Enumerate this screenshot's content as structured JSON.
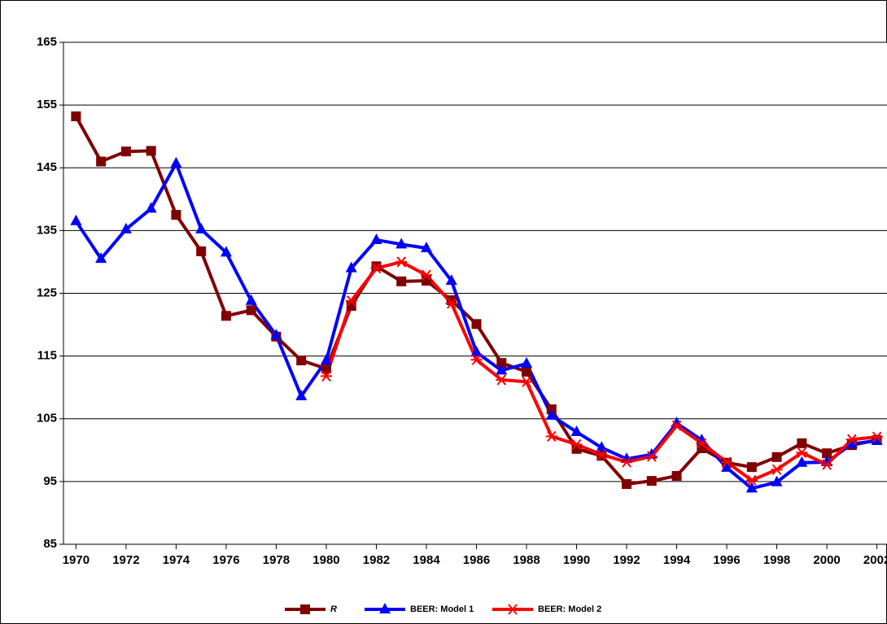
{
  "chart_data": {
    "type": "line",
    "x": [
      1970,
      1971,
      1972,
      1973,
      1974,
      1975,
      1976,
      1977,
      1978,
      1979,
      1980,
      1981,
      1982,
      1983,
      1984,
      1985,
      1986,
      1987,
      1988,
      1989,
      1990,
      1991,
      1992,
      1993,
      1994,
      1995,
      1996,
      1997,
      1998,
      1999,
      2000,
      2001,
      2002
    ],
    "series": [
      {
        "name": "R",
        "color": "#800000",
        "marker": "square",
        "values": [
          153.2,
          146.0,
          147.6,
          147.7,
          137.5,
          131.7,
          121.4,
          122.3,
          118.1,
          114.3,
          113.0,
          123.0,
          129.3,
          126.9,
          127.0,
          123.9,
          120.1,
          113.9,
          112.5,
          106.5,
          100.2,
          99.1,
          94.6,
          95.1,
          95.9,
          100.3,
          98.0,
          97.3,
          98.9,
          101.1,
          99.5,
          100.8,
          101.6
        ]
      },
      {
        "name": "BEER: Model 1",
        "color": "#0000ff",
        "marker": "triangle",
        "values": [
          136.5,
          130.5,
          135.2,
          138.5,
          145.7,
          135.2,
          131.5,
          123.8,
          118.3,
          108.6,
          114.3,
          129.0,
          133.5,
          132.8,
          132.2,
          127.0,
          115.6,
          112.7,
          113.8,
          105.5,
          102.9,
          100.4,
          98.6,
          99.3,
          104.3,
          101.6,
          97.2,
          93.9,
          94.9,
          98.0,
          98.1,
          101.0,
          101.5
        ]
      },
      {
        "name": "BEER: Model 2",
        "color": "#ff0000",
        "marker": "asterisk",
        "values": [
          null,
          null,
          null,
          null,
          null,
          null,
          null,
          null,
          null,
          null,
          111.8,
          123.8,
          129.0,
          130.0,
          127.9,
          123.4,
          114.4,
          111.2,
          110.9,
          102.2,
          100.9,
          99.3,
          98.1,
          99.0,
          103.9,
          101.1,
          98.1,
          95.2,
          96.9,
          99.6,
          97.7,
          101.7,
          102.1
        ]
      }
    ],
    "xlim": [
      1969.5,
      2002.5
    ],
    "xticks": [
      1970,
      1972,
      1974,
      1976,
      1978,
      1980,
      1982,
      1984,
      1986,
      1988,
      1990,
      1992,
      1994,
      1996,
      1998,
      2000,
      2002
    ],
    "ylim": [
      85,
      165
    ],
    "yticks": [
      85,
      95,
      105,
      115,
      125,
      135,
      145,
      155,
      165
    ],
    "grid": true,
    "legend": "bottom"
  }
}
